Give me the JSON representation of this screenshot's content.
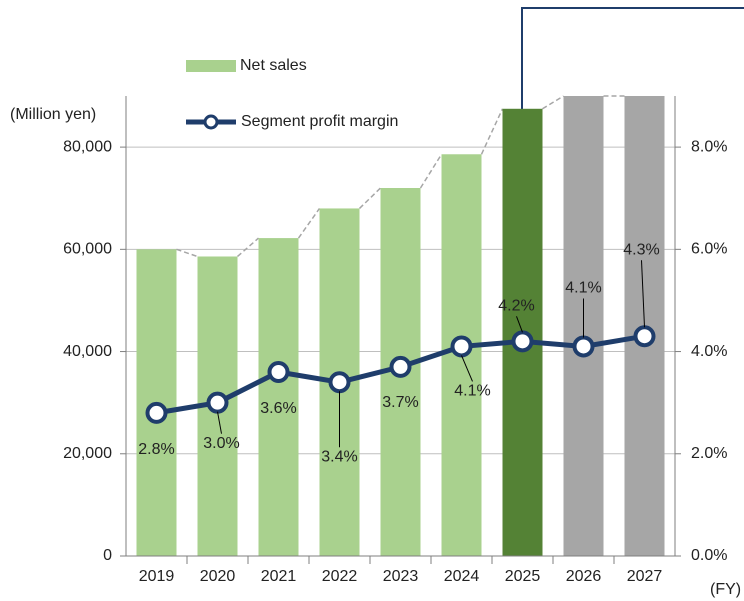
{
  "chart_data": {
    "type": "bar",
    "categories": [
      "2019",
      "2020",
      "2021",
      "2022",
      "2023",
      "2024",
      "2025",
      "2026",
      "2027"
    ],
    "series": [
      {
        "name": "Net sales",
        "type": "bar",
        "color": "#a9d18e",
        "colors": [
          "#a9d18e",
          "#a9d18e",
          "#a9d18e",
          "#a9d18e",
          "#a9d18e",
          "#a9d18e",
          "#548235",
          "#a6a6a6",
          "#a6a6a6"
        ],
        "values": [
          60000,
          58600,
          62200,
          68000,
          72000,
          78600,
          87500,
          90000,
          90000
        ]
      },
      {
        "name": "Segment profit margin",
        "type": "line",
        "axis": "y2",
        "color": "#1f3d6b",
        "values": [
          2.8,
          3.0,
          3.6,
          3.4,
          3.7,
          4.1,
          4.2,
          4.1,
          4.3
        ],
        "value_labels": [
          "2.8%",
          "3.0%",
          "3.6%",
          "3.4%",
          "3.7%",
          "4.1%",
          "4.2%",
          "4.1%",
          "4.3%"
        ]
      }
    ],
    "y_label": "(Million yen)",
    "x_label": "(FY)",
    "ylim": [
      0,
      90000
    ],
    "yticks": [
      0,
      {
        "value": 20000,
        "label": "20,000"
      },
      {
        "value": 40000,
        "label": "40,000"
      },
      {
        "value": 60000,
        "label": "60,000"
      },
      {
        "value": 80000,
        "label": "80,000"
      }
    ],
    "y2lim": [
      0,
      9
    ],
    "y2ticks": [
      {
        "value": 0,
        "label": "0.0%"
      },
      {
        "value": 2,
        "label": "2.0%"
      },
      {
        "value": 4,
        "label": "4.0%"
      },
      {
        "value": 6,
        "label": "6.0%"
      },
      {
        "value": 8,
        "label": "8.0%"
      }
    ],
    "grid": true
  }
}
